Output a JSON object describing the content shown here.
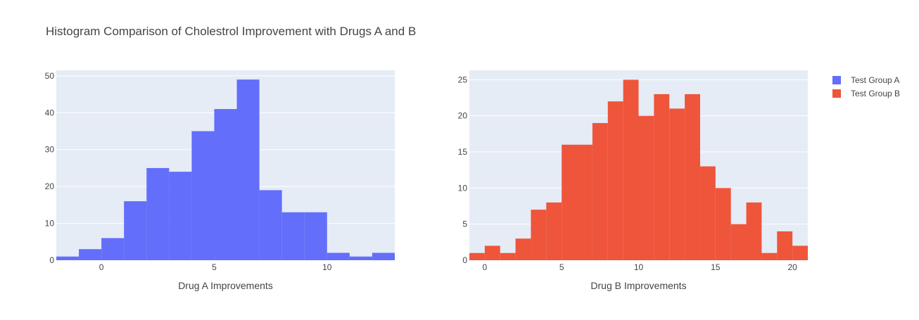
{
  "title": "Histogram Comparison of Cholestrol Improvement with Drugs A and B",
  "colors": {
    "plot_bg": "#E5ECF6",
    "grid": "#ffffff",
    "series_a": "#636EFA",
    "series_b": "#EF553B",
    "text": "#444444"
  },
  "legend": [
    {
      "label": "Test Group A",
      "color": "#636EFA"
    },
    {
      "label": "Test Group B",
      "color": "#EF553B"
    }
  ],
  "chart_data": [
    {
      "type": "bar",
      "title": "",
      "xlabel": "Drug A Improvements",
      "ylabel": "",
      "series_name": "Test Group A",
      "bin_width": 1,
      "bin_starts": [
        -2,
        -1,
        0,
        1,
        2,
        3,
        4,
        5,
        6,
        7,
        8,
        9,
        10,
        11,
        12
      ],
      "values": [
        1,
        3,
        6,
        16,
        25,
        24,
        35,
        41,
        49,
        19,
        13,
        13,
        2,
        1,
        2
      ],
      "xlim": [
        -2,
        13
      ],
      "ylim": [
        0,
        51.5
      ],
      "xticks": [
        0,
        5,
        10
      ],
      "yticks": [
        0,
        10,
        20,
        30,
        40,
        50
      ],
      "grid": true
    },
    {
      "type": "bar",
      "title": "",
      "xlabel": "Drug B Improvements",
      "ylabel": "",
      "series_name": "Test Group B",
      "bin_width": 1,
      "bin_starts": [
        -1,
        0,
        1,
        2,
        3,
        4,
        5,
        6,
        7,
        8,
        9,
        10,
        11,
        12,
        13,
        14,
        15,
        16,
        17,
        18,
        19,
        20
      ],
      "values": [
        1,
        2,
        1,
        3,
        7,
        8,
        16,
        16,
        19,
        22,
        25,
        20,
        23,
        21,
        23,
        13,
        10,
        5,
        8,
        1,
        4,
        2
      ],
      "xlim": [
        -1,
        21
      ],
      "ylim": [
        0,
        26.3
      ],
      "xticks": [
        0,
        5,
        10,
        15,
        20
      ],
      "yticks": [
        0,
        5,
        10,
        15,
        20,
        25
      ],
      "grid": true
    }
  ]
}
